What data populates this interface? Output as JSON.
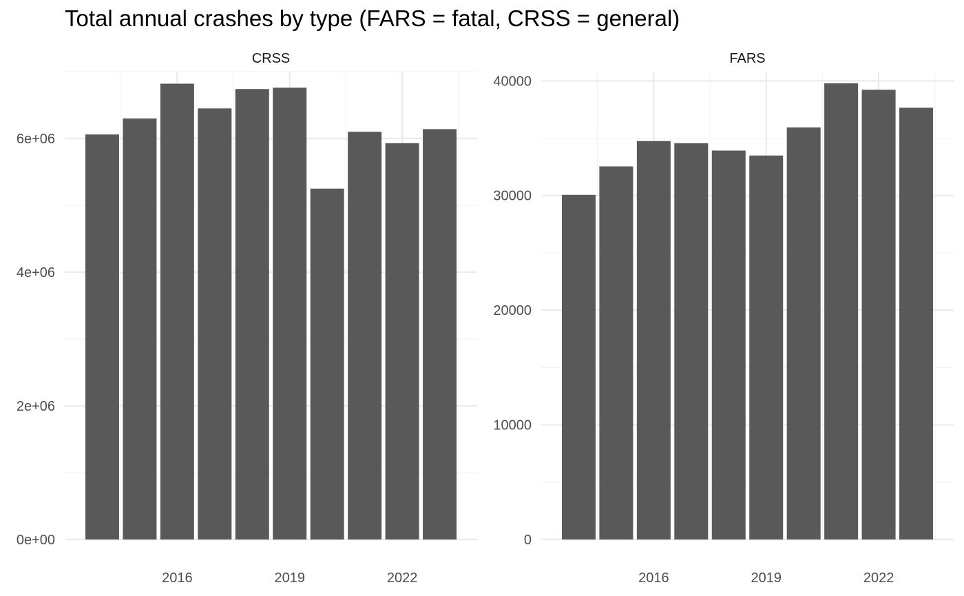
{
  "title": "Total annual crashes by type (FARS = fatal, CRSS = general)",
  "style": {
    "bar_color": "#595959",
    "grid_major": "#ebebeb",
    "grid_minor": "#f3f3f3",
    "tick_text": "#4d4d4d",
    "strip_text": "#1a1a1a"
  },
  "chart_data": [
    {
      "type": "bar",
      "panel": "CRSS",
      "x": [
        2014,
        2015,
        2016,
        2017,
        2018,
        2019,
        2020,
        2021,
        2022,
        2023
      ],
      "values": [
        6060000,
        6300000,
        6820000,
        6450000,
        6740000,
        6760000,
        5250000,
        6100000,
        5930000,
        6140000
      ],
      "x_ticks": [
        2016,
        2019,
        2022
      ],
      "x_tick_labels": [
        "2016",
        "2019",
        "2022"
      ],
      "y_ticks": [
        0,
        2000000,
        4000000,
        6000000
      ],
      "y_tick_labels": [
        "0e+00",
        "2e+06",
        "4e+06",
        "6e+06"
      ],
      "ylim": [
        0,
        7000000
      ],
      "xlabel": "",
      "ylabel": "",
      "grid": true,
      "legend": "none"
    },
    {
      "type": "bar",
      "panel": "FARS",
      "x": [
        2014,
        2015,
        2016,
        2017,
        2018,
        2019,
        2020,
        2021,
        2022,
        2023
      ],
      "values": [
        30056,
        32538,
        34748,
        34560,
        33919,
        33487,
        35935,
        39785,
        39221,
        37654
      ],
      "x_ticks": [
        2016,
        2019,
        2022
      ],
      "x_tick_labels": [
        "2016",
        "2019",
        "2022"
      ],
      "y_ticks": [
        0,
        10000,
        20000,
        30000,
        40000
      ],
      "y_tick_labels": [
        "0",
        "10000",
        "20000",
        "30000",
        "40000"
      ],
      "ylim": [
        0,
        40800
      ],
      "xlabel": "",
      "ylabel": "",
      "grid": true,
      "legend": "none"
    }
  ]
}
